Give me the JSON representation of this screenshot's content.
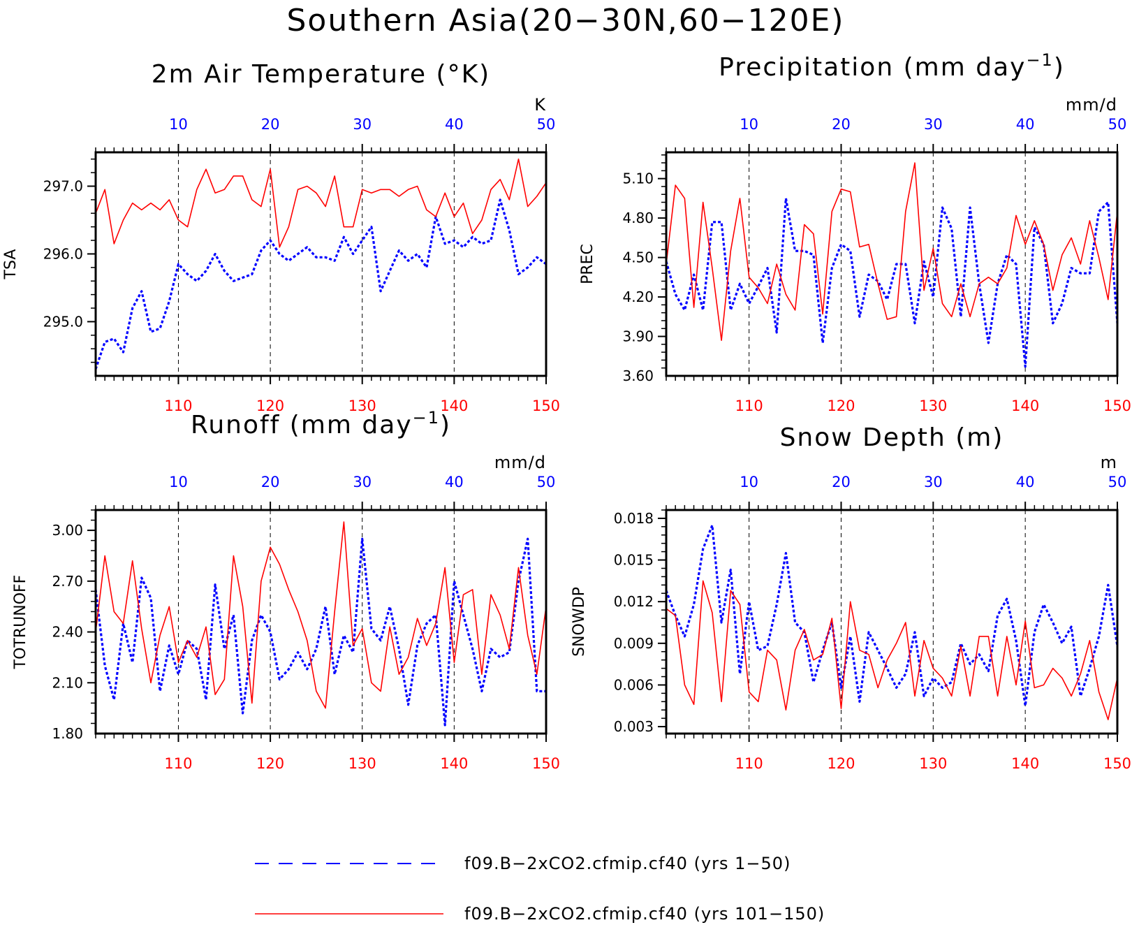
{
  "title": "Southern Asia(20−30N,60−120E)",
  "colors": {
    "series_a": "#0000ff",
    "series_b": "#ff0000",
    "frame": "#000000"
  },
  "legend": [
    {
      "label": "f09.B−2xCO2.cfmip.cf40 (yrs 1−50)",
      "color": "#0000ff",
      "style": "dashed"
    },
    {
      "label": "f09.B−2xCO2.cfmip.cf40 (yrs 101−150)",
      "color": "#ff0000",
      "style": "solid"
    }
  ],
  "chart_data": [
    {
      "type": "line",
      "title_main": "2m Air Temperature (°K)",
      "ylabel": "TSA",
      "unit": "K",
      "ylim": [
        294.2,
        297.5
      ],
      "yticks": [
        "295.0",
        "296.0",
        "297.0"
      ],
      "ytick_values": [
        295.0,
        296.0,
        297.0
      ],
      "xlim_bottom": [
        101,
        150
      ],
      "xticks_bottom": [
        "110",
        "120",
        "130",
        "140",
        "150"
      ],
      "xticks_top": [
        "10",
        "20",
        "30",
        "40",
        "50"
      ],
      "grid_x": [
        110,
        120,
        130,
        140
      ],
      "series": [
        {
          "name": "f09.B−2xCO2.cfmip.cf40 (yrs 1−50)",
          "color": "#0000ff",
          "style": "dashed",
          "x_start": 1,
          "values": [
            294.3,
            294.7,
            294.75,
            294.55,
            295.2,
            295.45,
            294.85,
            294.9,
            295.3,
            295.85,
            295.7,
            295.6,
            295.75,
            296.0,
            295.75,
            295.6,
            295.65,
            295.7,
            296.05,
            296.2,
            296.0,
            295.9,
            296.0,
            296.1,
            295.95,
            295.95,
            295.9,
            296.25,
            296.0,
            296.2,
            296.4,
            295.45,
            295.75,
            296.05,
            295.9,
            296.0,
            295.8,
            296.55,
            296.15,
            296.2,
            296.1,
            296.25,
            296.15,
            296.2,
            296.8,
            296.35,
            295.7,
            295.8,
            295.95,
            295.85
          ]
        },
        {
          "name": "f09.B−2xCO2.cfmip.cf40 (yrs 101−150)",
          "color": "#ff0000",
          "style": "solid",
          "x_start": 101,
          "values": [
            296.6,
            296.95,
            296.15,
            296.5,
            296.75,
            296.65,
            296.75,
            296.65,
            296.8,
            296.5,
            296.4,
            296.95,
            297.25,
            296.9,
            296.95,
            297.15,
            297.15,
            296.8,
            296.7,
            297.25,
            296.1,
            296.4,
            296.95,
            297.0,
            296.9,
            296.7,
            297.15,
            296.4,
            296.4,
            296.95,
            296.9,
            296.95,
            296.95,
            296.85,
            296.95,
            297.0,
            296.65,
            296.55,
            296.9,
            296.55,
            296.75,
            296.3,
            296.5,
            296.95,
            297.1,
            296.8,
            297.4,
            296.7,
            296.85,
            297.05
          ]
        }
      ]
    },
    {
      "type": "line",
      "title_main": "Precipitation (mm day",
      "title_sup": "−1",
      "title_end": ")",
      "ylabel": "PREC",
      "unit": "mm/d",
      "ylim": [
        3.6,
        5.3
      ],
      "yticks": [
        "3.60",
        "3.90",
        "4.20",
        "4.50",
        "4.80",
        "5.10"
      ],
      "ytick_values": [
        3.6,
        3.9,
        4.2,
        4.5,
        4.8,
        5.1
      ],
      "xlim_bottom": [
        101,
        150
      ],
      "xticks_bottom": [
        "110",
        "120",
        "130",
        "140",
        "150"
      ],
      "xticks_top": [
        "10",
        "20",
        "30",
        "40",
        "50"
      ],
      "grid_x": [
        110,
        120,
        130,
        140
      ],
      "series": [
        {
          "name": "f09.B−2xCO2.cfmip.cf40 (yrs 1−50)",
          "color": "#0000ff",
          "style": "dashed",
          "x_start": 1,
          "values": [
            4.47,
            4.22,
            4.1,
            4.37,
            4.1,
            4.77,
            4.77,
            4.1,
            4.3,
            4.15,
            4.28,
            4.42,
            3.93,
            4.95,
            4.55,
            4.55,
            4.52,
            3.85,
            4.42,
            4.6,
            4.55,
            4.05,
            4.37,
            4.32,
            4.18,
            4.45,
            4.45,
            4.0,
            4.47,
            4.2,
            4.88,
            4.72,
            4.05,
            4.88,
            4.3,
            3.85,
            4.3,
            4.52,
            4.45,
            3.67,
            4.73,
            4.6,
            4.0,
            4.15,
            4.42,
            4.38,
            4.38,
            4.85,
            4.92,
            4.0
          ]
        },
        {
          "name": "f09.B−2xCO2.cfmip.cf40 (yrs 101−150)",
          "color": "#ff0000",
          "style": "solid",
          "x_start": 101,
          "values": [
            4.45,
            5.05,
            4.95,
            4.12,
            4.92,
            4.42,
            3.87,
            4.55,
            4.95,
            4.35,
            4.27,
            4.15,
            4.45,
            4.22,
            4.1,
            4.75,
            4.68,
            4.07,
            4.85,
            5.02,
            5.0,
            4.58,
            4.6,
            4.3,
            4.03,
            4.05,
            4.85,
            5.22,
            4.25,
            4.57,
            4.15,
            4.05,
            4.3,
            4.05,
            4.3,
            4.35,
            4.3,
            4.42,
            4.82,
            4.6,
            4.78,
            4.6,
            4.25,
            4.52,
            4.65,
            4.45,
            4.78,
            4.5,
            4.18,
            4.85
          ]
        }
      ]
    },
    {
      "type": "line",
      "title_main": "Runoff (mm day",
      "title_sup": "−1",
      "title_end": ")",
      "ylabel": "TOTRUNOFF",
      "unit": "mm/d",
      "ylim": [
        1.8,
        3.12
      ],
      "yticks": [
        "1.80",
        "2.10",
        "2.40",
        "2.70",
        "3.00"
      ],
      "ytick_values": [
        1.8,
        2.1,
        2.4,
        2.7,
        3.0
      ],
      "xlim_bottom": [
        101,
        150
      ],
      "xticks_bottom": [
        "110",
        "120",
        "130",
        "140",
        "150"
      ],
      "xticks_top": [
        "10",
        "20",
        "30",
        "40",
        "50"
      ],
      "grid_x": [
        110,
        120,
        130,
        140
      ],
      "series": [
        {
          "name": "f09.B−2xCO2.cfmip.cf40 (yrs 1−50)",
          "color": "#0000ff",
          "style": "dashed",
          "x_start": 1,
          "values": [
            2.65,
            2.2,
            2.0,
            2.45,
            2.22,
            2.72,
            2.6,
            2.05,
            2.32,
            2.15,
            2.35,
            2.3,
            2.0,
            2.68,
            2.3,
            2.5,
            1.92,
            2.35,
            2.5,
            2.4,
            2.12,
            2.18,
            2.28,
            2.18,
            2.3,
            2.55,
            2.15,
            2.38,
            2.28,
            2.95,
            2.42,
            2.35,
            2.55,
            2.3,
            1.97,
            2.32,
            2.45,
            2.5,
            1.85,
            2.7,
            2.5,
            2.3,
            2.05,
            2.3,
            2.25,
            2.28,
            2.7,
            2.95,
            2.05,
            2.05
          ]
        },
        {
          "name": "f09.B−2xCO2.cfmip.cf40 (yrs 101−150)",
          "color": "#ff0000",
          "style": "solid",
          "x_start": 101,
          "values": [
            2.4,
            2.85,
            2.52,
            2.45,
            2.82,
            2.42,
            2.1,
            2.38,
            2.55,
            2.22,
            2.35,
            2.25,
            2.43,
            2.03,
            2.12,
            2.85,
            2.55,
            1.98,
            2.7,
            2.9,
            2.8,
            2.65,
            2.52,
            2.35,
            2.05,
            1.95,
            2.52,
            3.05,
            2.32,
            2.42,
            2.1,
            2.05,
            2.43,
            2.15,
            2.25,
            2.48,
            2.32,
            2.45,
            2.78,
            2.22,
            2.62,
            2.65,
            2.15,
            2.62,
            2.5,
            2.3,
            2.78,
            2.38,
            2.15,
            2.55
          ]
        }
      ]
    },
    {
      "type": "line",
      "title_main": "Snow Depth (m)",
      "ylabel": "SNOWDP",
      "unit": "m",
      "ylim": [
        0.0025,
        0.0186
      ],
      "yticks": [
        "0.003",
        "0.006",
        "0.009",
        "0.012",
        "0.015",
        "0.018"
      ],
      "ytick_values": [
        0.003,
        0.006,
        0.009,
        0.012,
        0.015,
        0.018
      ],
      "xlim_bottom": [
        101,
        150
      ],
      "xticks_bottom": [
        "110",
        "120",
        "130",
        "140",
        "150"
      ],
      "xticks_top": [
        "10",
        "20",
        "30",
        "40",
        "50"
      ],
      "grid_x": [
        110,
        120,
        130,
        140
      ],
      "series": [
        {
          "name": "f09.B−2xCO2.cfmip.cf40 (yrs 1−50)",
          "color": "#0000ff",
          "style": "dashed",
          "x_start": 1,
          "values": [
            0.0128,
            0.011,
            0.0095,
            0.0118,
            0.0158,
            0.0175,
            0.0105,
            0.0143,
            0.0068,
            0.012,
            0.0085,
            0.0088,
            0.0118,
            0.0155,
            0.0105,
            0.0098,
            0.0062,
            0.0085,
            0.0105,
            0.0058,
            0.0095,
            0.0048,
            0.0098,
            0.0085,
            0.0072,
            0.0058,
            0.0068,
            0.0098,
            0.0052,
            0.0065,
            0.0058,
            0.0062,
            0.009,
            0.0075,
            0.0082,
            0.007,
            0.011,
            0.0122,
            0.0092,
            0.0045,
            0.0098,
            0.0118,
            0.0105,
            0.009,
            0.0102,
            0.0052,
            0.0072,
            0.0095,
            0.0132,
            0.0088
          ]
        },
        {
          "name": "f09.B−2xCO2.cfmip.cf40 (yrs 101−150)",
          "color": "#ff0000",
          "style": "solid",
          "x_start": 101,
          "values": [
            0.0115,
            0.011,
            0.006,
            0.0046,
            0.0135,
            0.0112,
            0.0048,
            0.0128,
            0.0118,
            0.0055,
            0.0048,
            0.0085,
            0.0078,
            0.0042,
            0.0085,
            0.01,
            0.0078,
            0.0082,
            0.0108,
            0.0043,
            0.012,
            0.0085,
            0.0082,
            0.0058,
            0.0078,
            0.009,
            0.0105,
            0.0052,
            0.0092,
            0.0072,
            0.0065,
            0.0052,
            0.0088,
            0.0052,
            0.0095,
            0.0095,
            0.0052,
            0.0095,
            0.006,
            0.0106,
            0.0058,
            0.006,
            0.0072,
            0.0065,
            0.0052,
            0.0068,
            0.0092,
            0.0055,
            0.0035,
            0.0065
          ]
        }
      ]
    }
  ]
}
